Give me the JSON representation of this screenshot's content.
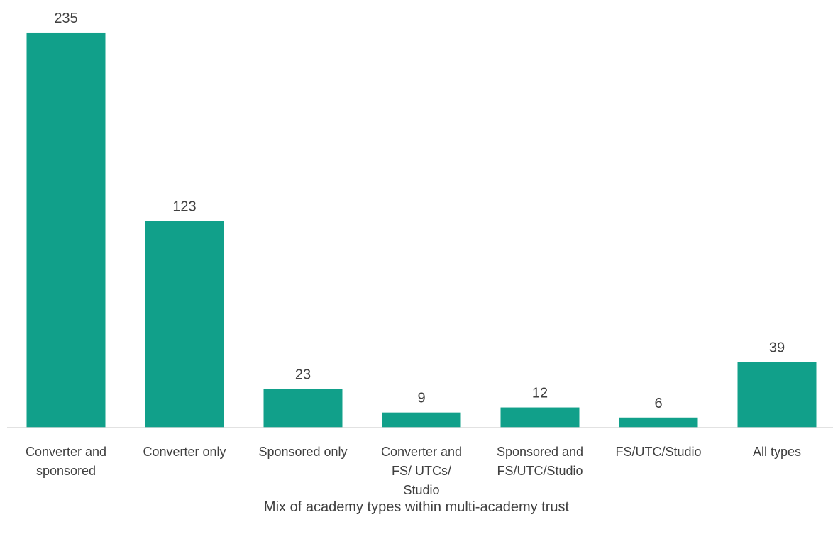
{
  "chart_data": {
    "type": "bar",
    "x_label": "Mix of academy types within multi-academy trust",
    "categories": [
      "Converter and\nsponsored",
      "Converter only",
      "Sponsored only",
      "Converter and\nFS/ UTCs/\nStudio",
      "Sponsored and\nFS/UTC/Studio",
      "FS/UTC/Studio",
      "All types"
    ],
    "values": [
      235,
      123,
      23,
      9,
      12,
      6,
      39
    ],
    "color": "#11a08a",
    "ylim": [
      0,
      250
    ]
  }
}
